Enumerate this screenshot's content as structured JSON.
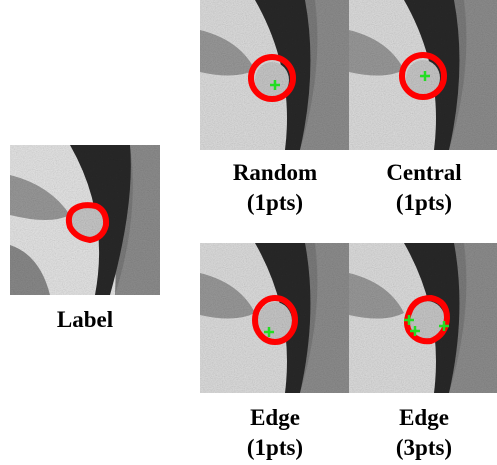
{
  "colors": {
    "mask_outline": "#ff0000",
    "point_marker": "#22dd22",
    "background": "#ffffff"
  },
  "panels": {
    "label": {
      "caption": "Label"
    },
    "random": {
      "caption_line1": "Random",
      "caption_line2": "(1pts)",
      "points": 1
    },
    "central": {
      "caption_line1": "Central",
      "caption_line2": "(1pts)",
      "points": 1
    },
    "edge1": {
      "caption_line1": "Edge",
      "caption_line2": "(1pts)",
      "points": 1
    },
    "edge3": {
      "caption_line1": "Edge",
      "caption_line2": "(3pts)",
      "points": 3
    }
  }
}
